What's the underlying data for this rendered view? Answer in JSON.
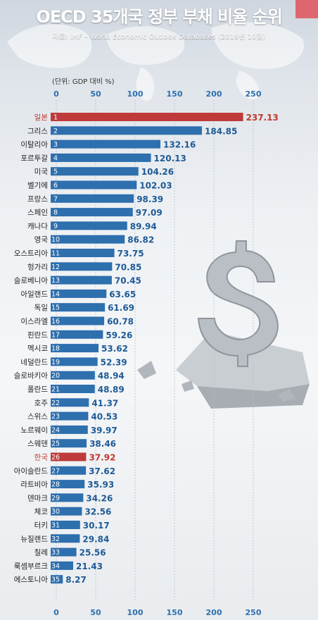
{
  "header": {
    "title": "OECD 35개국 정부 부채 비율 순위",
    "source": "자료: IMF – World Economic Outlook Databases (2019년 10월)",
    "unit": "(단위: GDP 대비 %)"
  },
  "colors": {
    "bar": "#2e6fae",
    "highlight": "#bf3b3b",
    "highlight_label": "#c0392b"
  },
  "chart_data": {
    "type": "bar",
    "orientation": "horizontal",
    "xlim": [
      0,
      250
    ],
    "ticks": [
      0,
      50,
      100,
      150,
      200,
      250
    ],
    "grid": true,
    "categories": [
      "일본",
      "그리스",
      "이탈리아",
      "포르투갈",
      "미국",
      "벨기에",
      "프랑스",
      "스페인",
      "캐나다",
      "영국",
      "오스트리아",
      "헝가리",
      "슬로베니아",
      "아일랜드",
      "독일",
      "이스라엘",
      "핀란드",
      "멕시코",
      "네덜란드",
      "슬로바키아",
      "폴란드",
      "호주",
      "스위스",
      "노르웨이",
      "스웨덴",
      "한국",
      "아이슬란드",
      "라트비아",
      "덴마크",
      "체코",
      "터키",
      "뉴질랜드",
      "칠레",
      "룩셈부르크",
      "에스토니아"
    ],
    "ranks": [
      "1",
      "2",
      "3",
      "4",
      "5",
      "6",
      "7",
      "8",
      "9",
      "10",
      "11",
      "12",
      "13",
      "14",
      "15",
      "16",
      "17",
      "18",
      "19",
      "20",
      "21",
      "22",
      "23",
      "24",
      "25",
      "26",
      "27",
      "28",
      "29",
      "30",
      "31",
      "32",
      "33",
      "34",
      "35"
    ],
    "values": [
      237.13,
      184.85,
      132.16,
      120.13,
      104.26,
      102.03,
      98.39,
      97.09,
      89.94,
      86.82,
      73.75,
      70.85,
      70.45,
      63.65,
      61.69,
      60.78,
      59.26,
      53.62,
      52.39,
      48.94,
      48.89,
      41.37,
      40.53,
      39.97,
      38.46,
      37.92,
      37.62,
      35.93,
      34.26,
      32.56,
      30.17,
      29.84,
      25.56,
      21.43,
      8.27
    ],
    "value_labels": [
      "237.13",
      "184.85",
      "132.16",
      "120.13",
      "104.26",
      "102.03",
      "98.39",
      "97.09",
      "89.94",
      "86.82",
      "73.75",
      "70.85",
      "70.45",
      "63.65",
      "61.69",
      "60.78",
      "59.26",
      "53.62",
      "52.39",
      "48.94",
      "48.89",
      "41.37",
      "40.53",
      "39.97",
      "38.46",
      "37.92",
      "37.62",
      "35.93",
      "34.26",
      "32.56",
      "30.17",
      "29.84",
      "25.56",
      "21.43",
      "8.27"
    ],
    "highlighted": [
      "일본",
      "한국"
    ]
  }
}
